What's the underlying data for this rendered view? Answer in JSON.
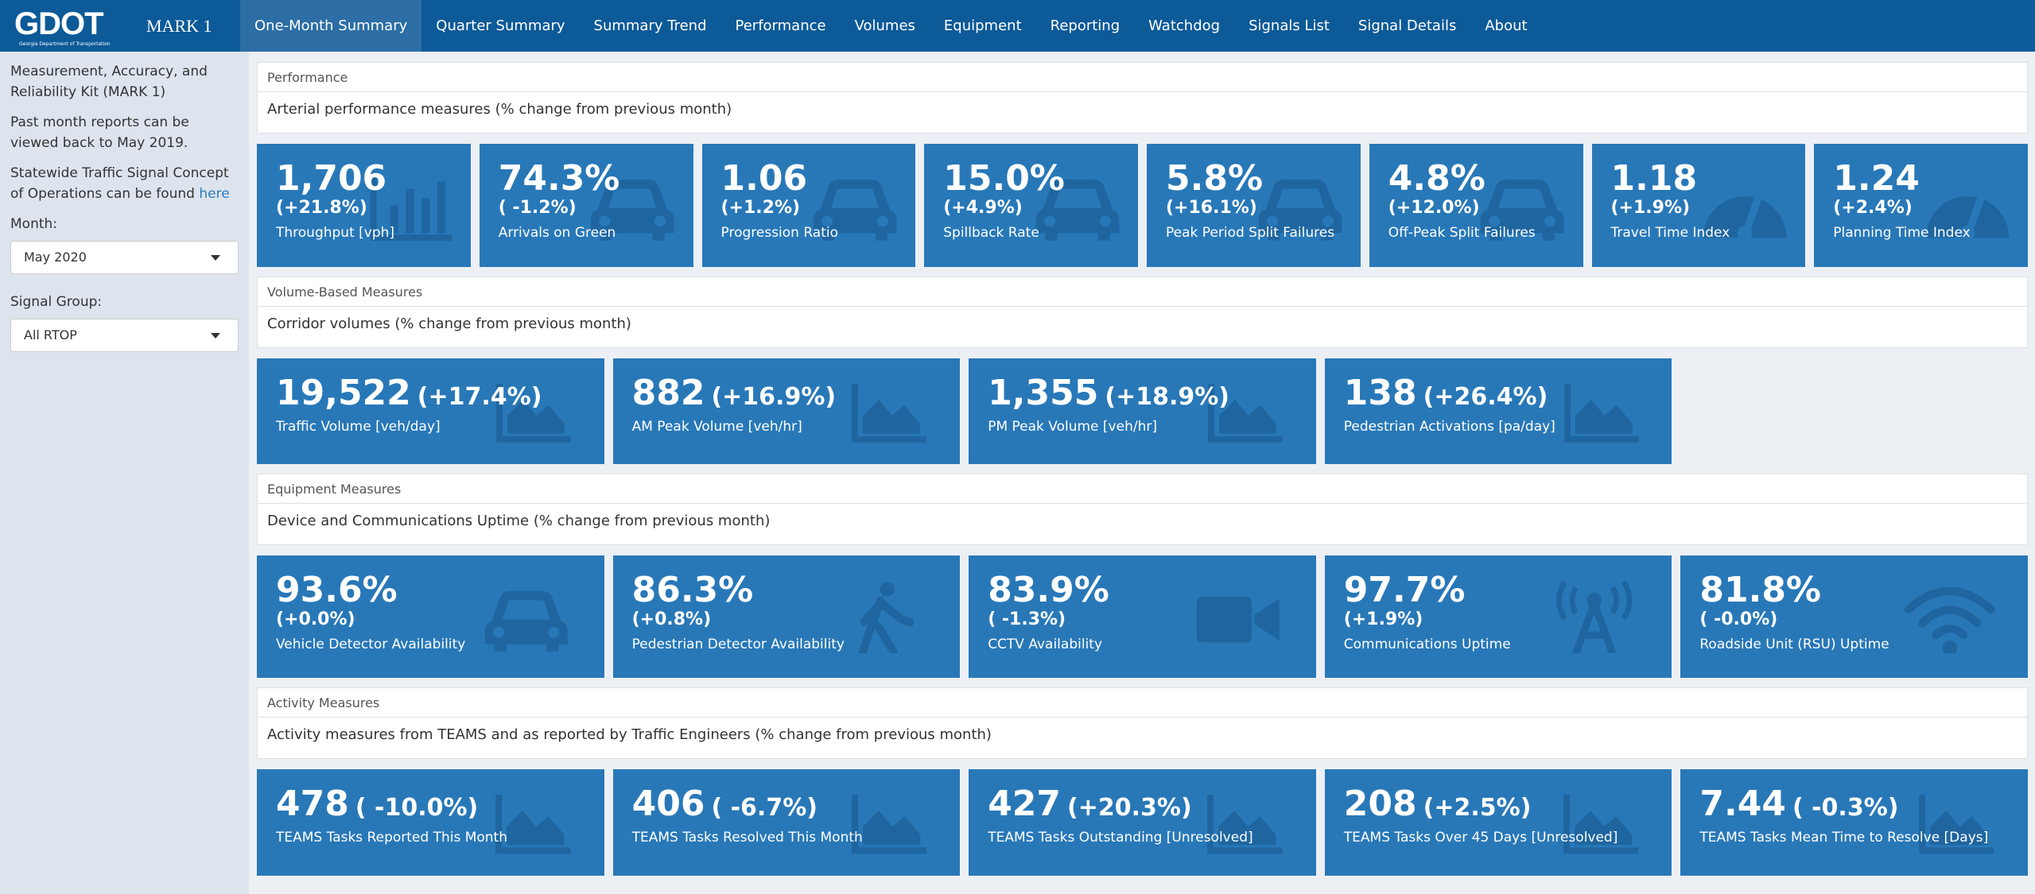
{
  "header": {
    "logo": "GDOT",
    "logo_subtitle": "Georgia Department of Transportation",
    "app_name": "MARK 1",
    "nav": [
      "One-Month Summary",
      "Quarter Summary",
      "Summary Trend",
      "Performance",
      "Volumes",
      "Equipment",
      "Reporting",
      "Watchdog",
      "Signals List",
      "Signal Details",
      "About"
    ]
  },
  "sidebar": {
    "description": "Measurement, Accuracy, and Reliability Kit (MARK 1)",
    "past_reports": "Past month reports can be viewed back to May 2019.",
    "concept_text": "Statewide Traffic Signal Concept of Operations can be found",
    "concept_link": "here",
    "month_label": "Month:",
    "month_value": "May 2020",
    "signal_group_label": "Signal Group:",
    "signal_group_value": "All RTOP"
  },
  "sections": [
    {
      "header": "Performance",
      "subtitle": "Arterial performance measures (% change from previous month)",
      "tiles": [
        {
          "value": "1,706",
          "change": "(+21.8%)",
          "label": "Throughput [vph]"
        },
        {
          "value": "74.3%",
          "change": "( -1.2%)",
          "label": "Arrivals on Green"
        },
        {
          "value": "1.06",
          "change": "(+1.2%)",
          "label": "Progression Ratio"
        },
        {
          "value": "15.0%",
          "change": "(+4.9%)",
          "label": "Spillback Rate"
        },
        {
          "value": "5.8%",
          "change": "(+16.1%)",
          "label": "Peak Period Split Failures"
        },
        {
          "value": "4.8%",
          "change": "(+12.0%)",
          "label": "Off-Peak Split Failures"
        },
        {
          "value": "1.18",
          "change": "(+1.9%)",
          "label": "Travel Time Index"
        },
        {
          "value": "1.24",
          "change": "(+2.4%)",
          "label": "Planning Time Index"
        }
      ]
    },
    {
      "header": "Volume-Based Measures",
      "subtitle": "Corridor volumes (% change from previous month)",
      "tiles": [
        {
          "value": "19,522",
          "change": "(+17.4%)",
          "label": "Traffic Volume [veh/day]"
        },
        {
          "value": "882",
          "change": "(+16.9%)",
          "label": "AM Peak Volume [veh/hr]"
        },
        {
          "value": "1,355",
          "change": "(+18.9%)",
          "label": "PM Peak Volume [veh/hr]"
        },
        {
          "value": "138",
          "change": "(+26.4%)",
          "label": "Pedestrian Activations [pa/day]"
        }
      ]
    },
    {
      "header": "Equipment Measures",
      "subtitle": "Device and Communications Uptime (% change from previous month)",
      "tiles": [
        {
          "value": "93.6%",
          "change": "(+0.0%)",
          "label": "Vehicle Detector Availability"
        },
        {
          "value": "86.3%",
          "change": "(+0.8%)",
          "label": "Pedestrian Detector Availability"
        },
        {
          "value": "83.9%",
          "change": "( -1.3%)",
          "label": "CCTV Availability"
        },
        {
          "value": "97.7%",
          "change": "(+1.9%)",
          "label": "Communications Uptime"
        },
        {
          "value": "81.8%",
          "change": "( -0.0%)",
          "label": "Roadside Unit (RSU) Uptime"
        }
      ]
    },
    {
      "header": "Activity Measures",
      "subtitle": "Activity measures from TEAMS and as reported by Traffic Engineers (% change from previous month)",
      "tiles": [
        {
          "value": "478",
          "change": "( -10.0%)",
          "label": "TEAMS Tasks Reported This Month"
        },
        {
          "value": "406",
          "change": "( -6.7%)",
          "label": "TEAMS Tasks Resolved This Month"
        },
        {
          "value": "427",
          "change": "(+20.3%)",
          "label": "TEAMS Tasks Outstanding [Unresolved]"
        },
        {
          "value": "208",
          "change": "(+2.5%)",
          "label": "TEAMS Tasks Over 45 Days [Unresolved]"
        },
        {
          "value": "7.44",
          "change": "( -0.3%)",
          "label": "TEAMS Tasks Mean Time to Resolve [Days]"
        }
      ]
    }
  ]
}
